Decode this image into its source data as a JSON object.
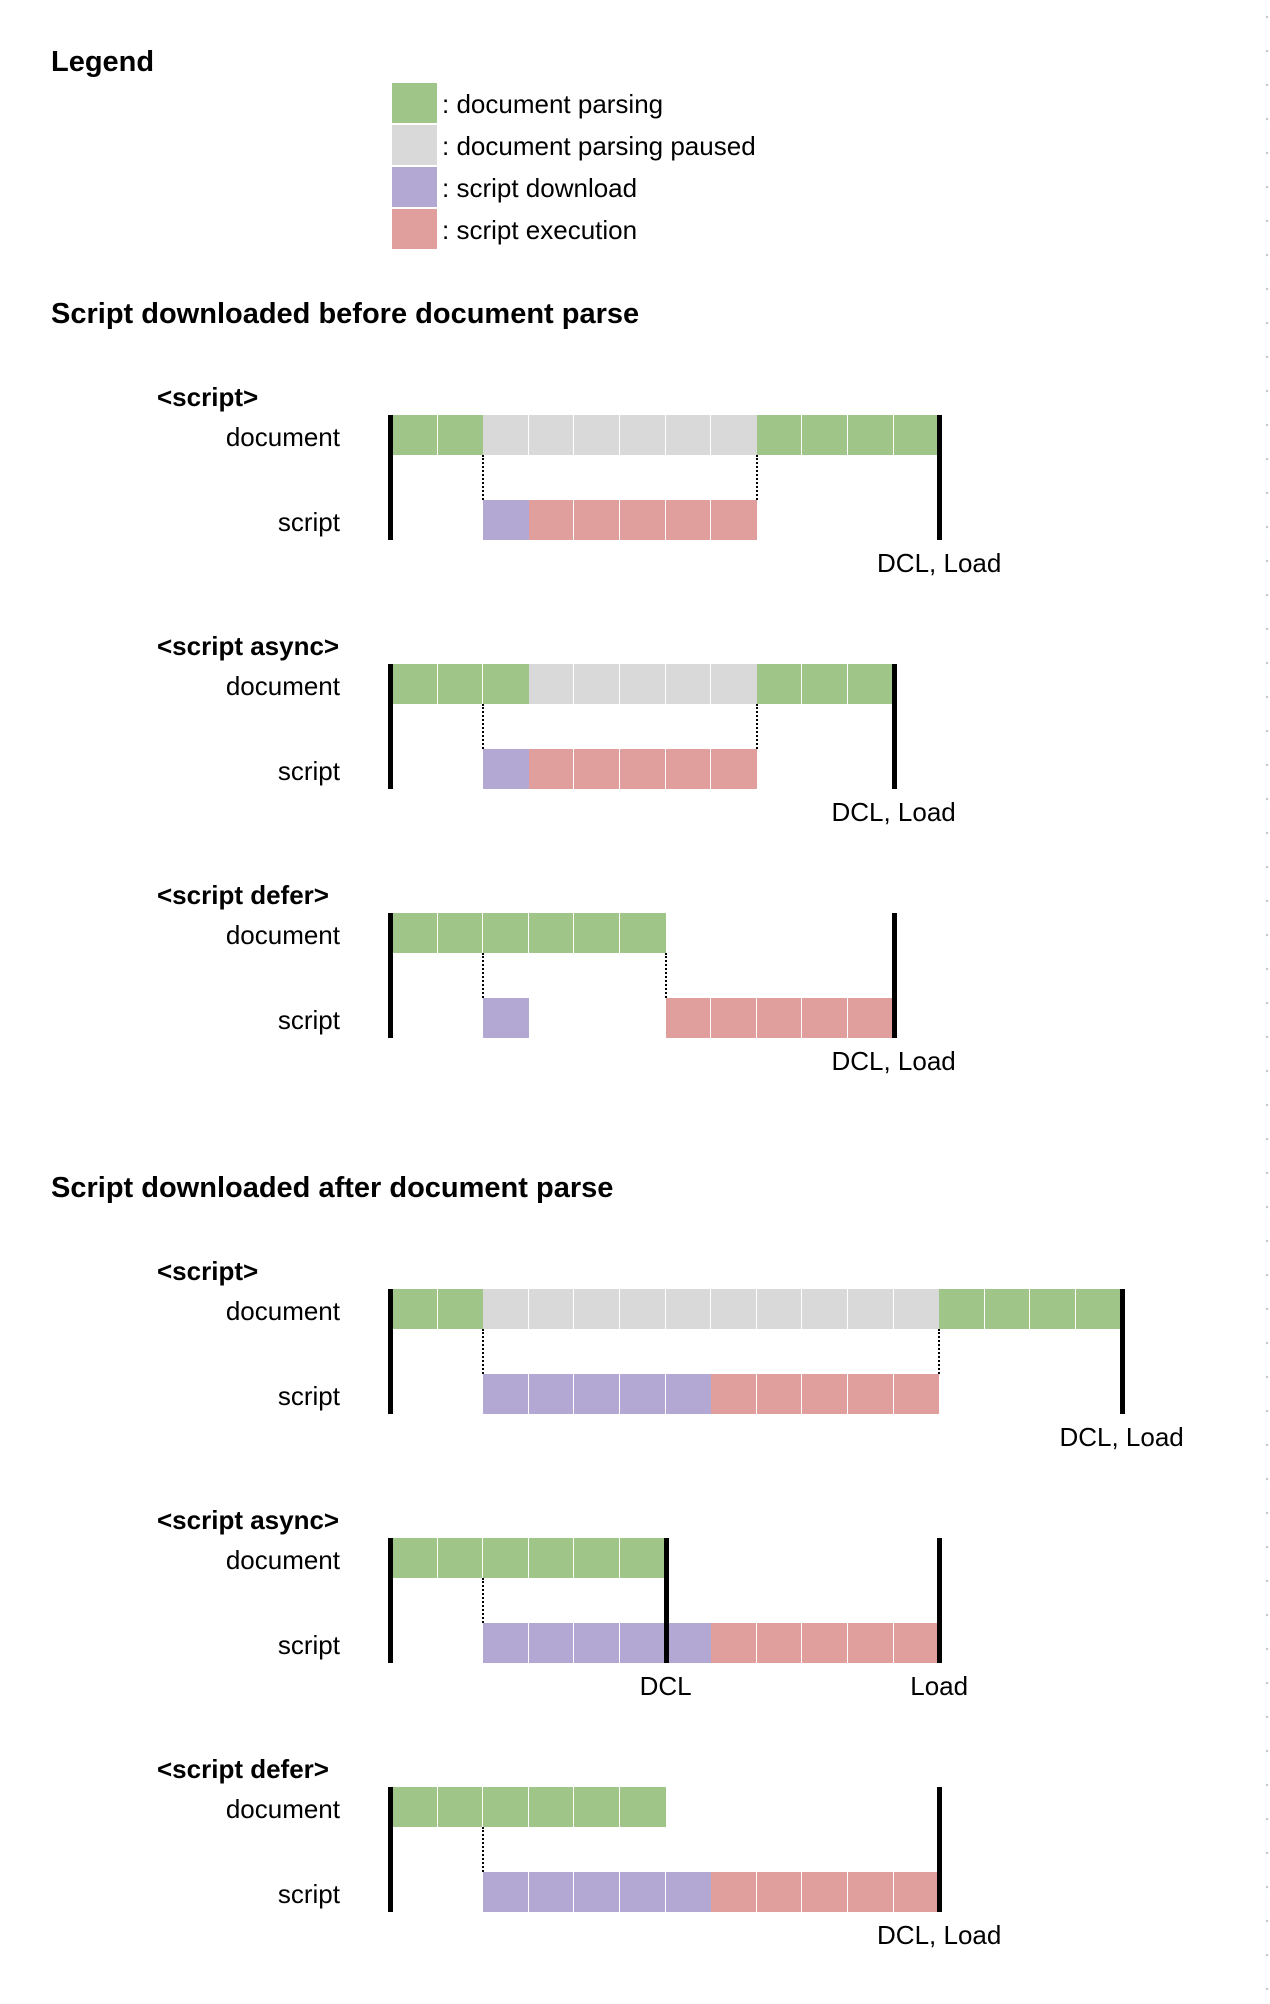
{
  "colors": {
    "document_parsing": "#a0c589",
    "document_parsing_paused": "#d9d9d9",
    "script_download": "#b3a8d4",
    "script_execution": "#e09e9c"
  },
  "legend": {
    "title": "Legend",
    "items": [
      {
        "key": "document_parsing",
        "label": ": document parsing"
      },
      {
        "key": "document_parsing_paused",
        "label": ": document parsing paused"
      },
      {
        "key": "script_download",
        "label": ": script download"
      },
      {
        "key": "script_execution",
        "label": ": script execution"
      }
    ]
  },
  "sections": [
    {
      "title": "Script downloaded before document parse",
      "diagrams": [
        {
          "title": "<script>",
          "row_labels": [
            "document",
            "script"
          ],
          "document_segments": [
            {
              "state": "document_parsing",
              "from": 0,
              "to": 2
            },
            {
              "state": "document_parsing_paused",
              "from": 2,
              "to": 8
            },
            {
              "state": "document_parsing",
              "from": 8,
              "to": 12
            }
          ],
          "script_segments": [
            {
              "state": "script_download",
              "from": 2,
              "to": 3
            },
            {
              "state": "script_execution",
              "from": 3,
              "to": 8
            }
          ],
          "dotted_guides": [
            2,
            8
          ],
          "markers": [
            {
              "at": 12,
              "label": "DCL, Load"
            }
          ]
        },
        {
          "title": "<script async>",
          "row_labels": [
            "document",
            "script"
          ],
          "document_segments": [
            {
              "state": "document_parsing",
              "from": 0,
              "to": 3
            },
            {
              "state": "document_parsing_paused",
              "from": 3,
              "to": 8
            },
            {
              "state": "document_parsing",
              "from": 8,
              "to": 11
            }
          ],
          "script_segments": [
            {
              "state": "script_download",
              "from": 2,
              "to": 3
            },
            {
              "state": "script_execution",
              "from": 3,
              "to": 8
            }
          ],
          "dotted_guides": [
            2,
            8
          ],
          "markers": [
            {
              "at": 11,
              "label": "DCL, Load"
            }
          ]
        },
        {
          "title": "<script defer>",
          "row_labels": [
            "document",
            "script"
          ],
          "document_segments": [
            {
              "state": "document_parsing",
              "from": 0,
              "to": 6
            }
          ],
          "script_segments": [
            {
              "state": "script_download",
              "from": 2,
              "to": 3
            },
            {
              "state": "script_execution",
              "from": 6,
              "to": 11
            }
          ],
          "dotted_guides": [
            2,
            6
          ],
          "markers": [
            {
              "at": 11,
              "label": "DCL, Load"
            }
          ]
        }
      ]
    },
    {
      "title": "Script downloaded after document parse",
      "diagrams": [
        {
          "title": "<script>",
          "row_labels": [
            "document",
            "script"
          ],
          "document_segments": [
            {
              "state": "document_parsing",
              "from": 0,
              "to": 2
            },
            {
              "state": "document_parsing_paused",
              "from": 2,
              "to": 12
            },
            {
              "state": "document_parsing",
              "from": 12,
              "to": 16
            }
          ],
          "script_segments": [
            {
              "state": "script_download",
              "from": 2,
              "to": 7
            },
            {
              "state": "script_execution",
              "from": 7,
              "to": 12
            }
          ],
          "dotted_guides": [
            2,
            12
          ],
          "markers": [
            {
              "at": 16,
              "label": "DCL, Load"
            }
          ]
        },
        {
          "title": "<script async>",
          "row_labels": [
            "document",
            "script"
          ],
          "document_segments": [
            {
              "state": "document_parsing",
              "from": 0,
              "to": 6
            }
          ],
          "script_segments": [
            {
              "state": "script_download",
              "from": 2,
              "to": 7
            },
            {
              "state": "script_execution",
              "from": 7,
              "to": 12
            }
          ],
          "dotted_guides": [
            2
          ],
          "markers": [
            {
              "at": 6,
              "label": "DCL"
            },
            {
              "at": 12,
              "label": "Load"
            }
          ]
        },
        {
          "title": "<script defer>",
          "row_labels": [
            "document",
            "script"
          ],
          "document_segments": [
            {
              "state": "document_parsing",
              "from": 0,
              "to": 6
            }
          ],
          "script_segments": [
            {
              "state": "script_download",
              "from": 2,
              "to": 7
            },
            {
              "state": "script_execution",
              "from": 7,
              "to": 12
            }
          ],
          "dotted_guides": [
            2
          ],
          "markers": [
            {
              "at": 12,
              "label": "DCL, Load"
            }
          ]
        }
      ]
    }
  ]
}
